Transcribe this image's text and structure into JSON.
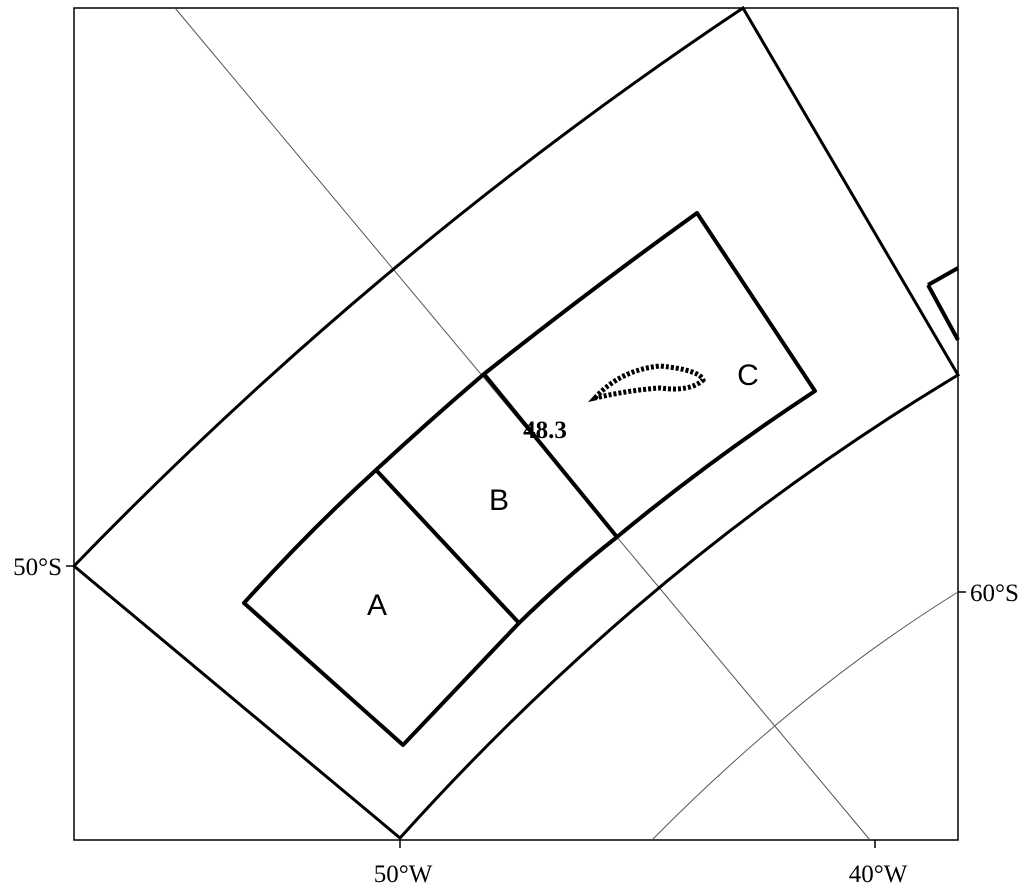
{
  "latitude_labels": [
    "50°S",
    "60°S"
  ],
  "longitude_labels": [
    "50°W",
    "40°W"
  ],
  "regions": [
    "A",
    "B",
    "C"
  ],
  "annotation": "48.3"
}
